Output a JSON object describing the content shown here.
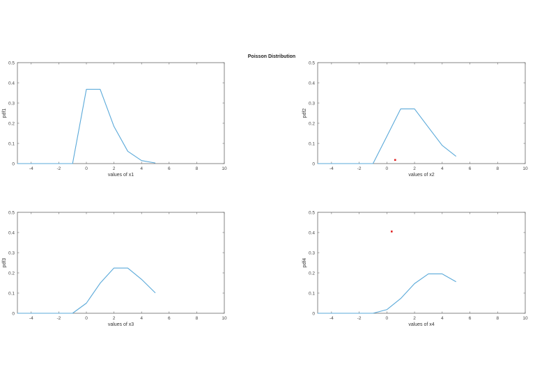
{
  "figure": {
    "title": "Poisson Distribution",
    "colors": {
      "line": "#5aa9d9",
      "marker": "#e02020",
      "axes": "#666666",
      "background": "#ffffff"
    }
  },
  "chart_data": [
    {
      "type": "line",
      "title": "",
      "xlabel": "values of x1",
      "ylabel": "pdf1",
      "xlim": [
        -5,
        10
      ],
      "ylim": [
        0,
        0.5
      ],
      "xticks": [
        -4,
        -2,
        0,
        2,
        4,
        6,
        8,
        10
      ],
      "yticks": [
        0,
        0.1,
        0.2,
        0.3,
        0.4,
        0.5
      ],
      "grid": false,
      "x": [
        -5,
        -4,
        -3,
        -2,
        -1,
        0,
        1,
        2,
        3,
        4,
        5
      ],
      "series": [
        {
          "name": "pdf1",
          "values": [
            0,
            0,
            0,
            0,
            0,
            0.368,
            0.368,
            0.184,
            0.061,
            0.015,
            0.003
          ]
        }
      ],
      "markers": []
    },
    {
      "type": "line",
      "title": "",
      "xlabel": "values of x2",
      "ylabel": "pdf2",
      "xlim": [
        -5,
        10
      ],
      "ylim": [
        0,
        0.5
      ],
      "xticks": [
        -4,
        -2,
        0,
        2,
        4,
        6,
        8,
        10
      ],
      "yticks": [
        0,
        0.1,
        0.2,
        0.3,
        0.4,
        0.5
      ],
      "grid": false,
      "x": [
        -5,
        -4,
        -3,
        -2,
        -1,
        0,
        1,
        2,
        3,
        4,
        5
      ],
      "series": [
        {
          "name": "pdf2",
          "values": [
            0,
            0,
            0,
            0,
            0,
            0.135,
            0.271,
            0.271,
            0.18,
            0.09,
            0.036
          ]
        }
      ],
      "markers": [
        {
          "x": 0.6,
          "y": 0.018
        }
      ]
    },
    {
      "type": "line",
      "title": "",
      "xlabel": "values of x3",
      "ylabel": "pdf3",
      "xlim": [
        -5,
        10
      ],
      "ylim": [
        0,
        0.5
      ],
      "xticks": [
        -4,
        -2,
        0,
        2,
        4,
        6,
        8,
        10
      ],
      "yticks": [
        0,
        0.1,
        0.2,
        0.3,
        0.4,
        0.5
      ],
      "grid": false,
      "x": [
        -5,
        -4,
        -3,
        -2,
        -1,
        0,
        1,
        2,
        3,
        4,
        5
      ],
      "series": [
        {
          "name": "pdf3",
          "values": [
            0,
            0,
            0,
            0,
            0,
            0.05,
            0.149,
            0.224,
            0.224,
            0.168,
            0.101
          ]
        }
      ],
      "markers": []
    },
    {
      "type": "line",
      "title": "",
      "xlabel": "values of x4",
      "ylabel": "pdf4",
      "xlim": [
        -5,
        10
      ],
      "ylim": [
        0,
        0.5
      ],
      "xticks": [
        -4,
        -2,
        0,
        2,
        4,
        6,
        8,
        10
      ],
      "yticks": [
        0,
        0.1,
        0.2,
        0.3,
        0.4,
        0.5
      ],
      "grid": false,
      "x": [
        -5,
        -4,
        -3,
        -2,
        -1,
        0,
        1,
        2,
        3,
        4,
        5
      ],
      "series": [
        {
          "name": "pdf4",
          "values": [
            0,
            0,
            0,
            0,
            0,
            0.018,
            0.073,
            0.147,
            0.195,
            0.195,
            0.156
          ]
        }
      ],
      "markers": [
        {
          "x": 0.35,
          "y": 0.405
        }
      ]
    }
  ]
}
